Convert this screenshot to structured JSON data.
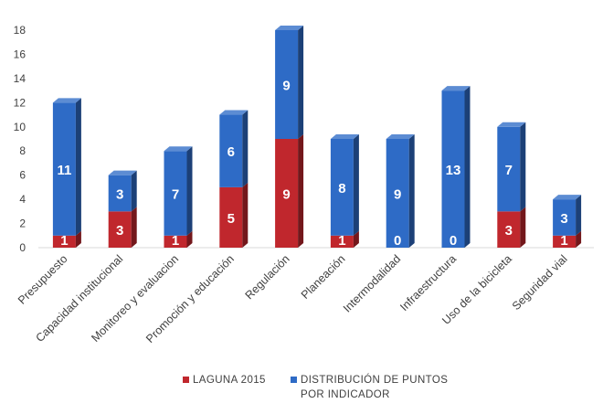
{
  "chart_data": {
    "type": "bar",
    "stacked": true,
    "style": "3d-columns",
    "categories": [
      "Presupuesto",
      "Capacidad institucional",
      "Monitoreo y evaluacion",
      "Promoción y educación",
      "Regulación",
      "Planeación",
      "Intermodalidad",
      "Infraestructura",
      "Uso de la bicicleta",
      "Seguridad vial"
    ],
    "series": [
      {
        "name": "LAGUNA 2015",
        "color": "#c0272d",
        "values": [
          1,
          3,
          1,
          5,
          9,
          1,
          0,
          0,
          3,
          1
        ]
      },
      {
        "name": "DISTRIBUCIÓN DE PUNTOS POR INDICADOR",
        "name_lines": [
          "DISTRIBUCIÓN DE PUNTOS",
          "POR INDICADOR"
        ],
        "color": "#2e6bc6",
        "values": [
          11,
          3,
          7,
          6,
          9,
          8,
          9,
          13,
          7,
          3
        ]
      }
    ],
    "ylim": [
      0,
      18
    ],
    "yticks": [
      0,
      2,
      4,
      6,
      8,
      10,
      12,
      14,
      16,
      18
    ],
    "grid": false,
    "legend": "bottom-center",
    "data_labels": true,
    "title": "",
    "xlabel": "",
    "ylabel": ""
  }
}
